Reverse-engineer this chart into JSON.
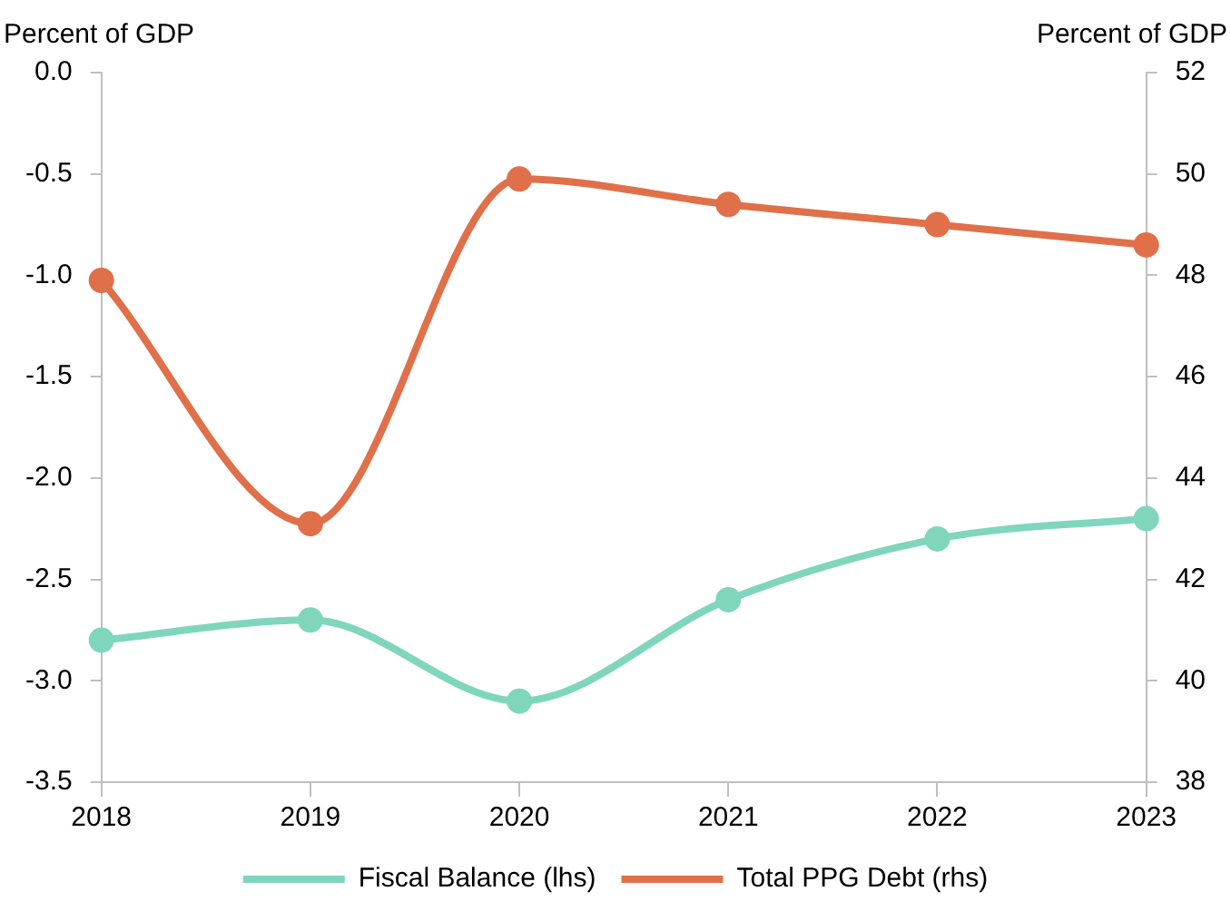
{
  "chart_data": {
    "type": "line",
    "ylabel": "Percent of GDP",
    "y2label": "Percent of GDP",
    "categories": [
      "2018",
      "2019",
      "2020",
      "2021",
      "2022",
      "2023"
    ],
    "series": [
      {
        "name": "Fiscal Balance (lhs)",
        "color": "#7fd6bd",
        "values": [
          -2.8,
          -2.7,
          -3.1,
          -2.6,
          -2.3,
          -2.2
        ]
      },
      {
        "name": "Total PPG Debt (rhs)",
        "color": "#e0704a",
        "axis": "y2",
        "values": [
          47.9,
          43.1,
          49.9,
          49.4,
          49.0,
          48.6
        ]
      }
    ],
    "ylim": [
      -3.5,
      0
    ],
    "yticks": [
      {
        "value": -3.5,
        "label": "-3.5"
      },
      {
        "value": -3,
        "label": "-3.0"
      },
      {
        "value": -2.5,
        "label": "-2.5"
      },
      {
        "value": -2,
        "label": "-2.0"
      },
      {
        "value": -1.5,
        "label": "-1.5"
      },
      {
        "value": -1,
        "label": "-1.0"
      },
      {
        "value": -0.5,
        "label": "-0.5"
      },
      {
        "value": 0,
        "label": "0.0"
      }
    ],
    "y2lim": [
      38,
      52
    ],
    "y2ticks": [
      38,
      40,
      42,
      44,
      46,
      48,
      50,
      52
    ],
    "grid": false,
    "legend": "bottom",
    "marker": "circle",
    "line_style": "solid"
  }
}
